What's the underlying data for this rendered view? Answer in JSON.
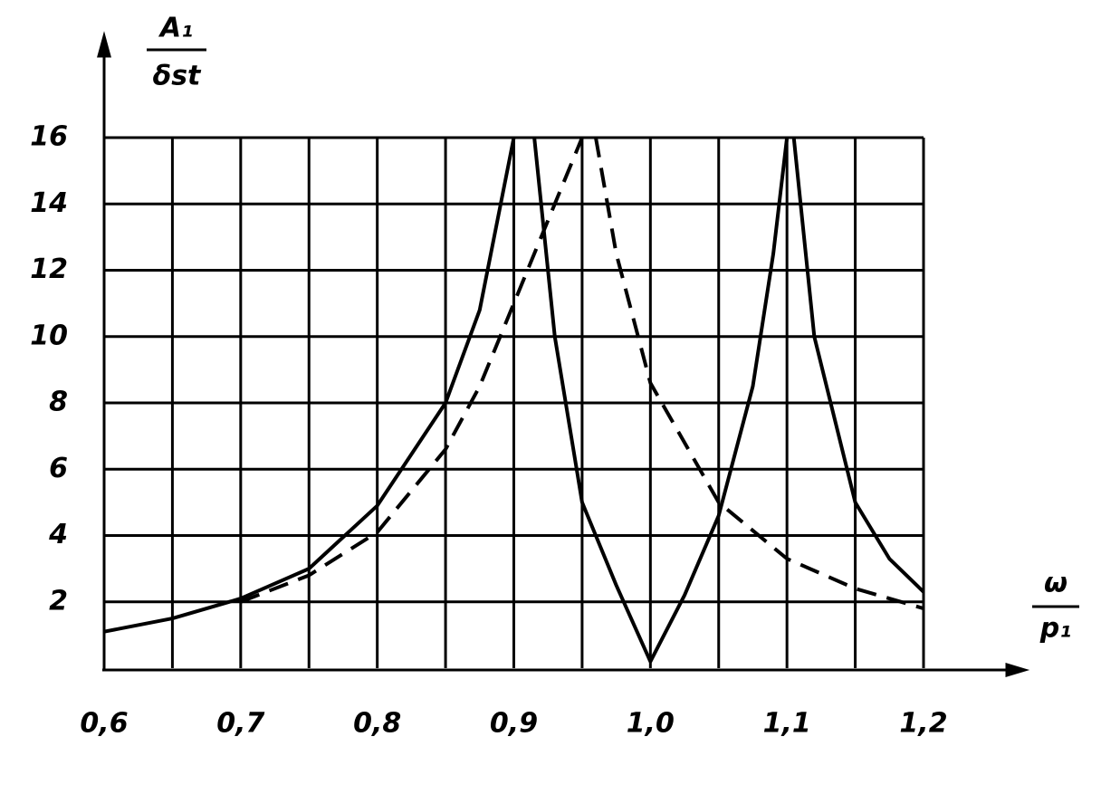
{
  "chart_data": {
    "type": "line",
    "y_label": {
      "numerator": "A₁",
      "denominator": "δst"
    },
    "x_label": {
      "numerator": "ω",
      "denominator": "p₁"
    },
    "xlim": [
      0.6,
      1.2
    ],
    "ylim": [
      0,
      16
    ],
    "xticks": [
      {
        "value": 0.6,
        "label": "0,6"
      },
      {
        "value": 0.7,
        "label": "0,7"
      },
      {
        "value": 0.8,
        "label": "0,8"
      },
      {
        "value": 0.9,
        "label": "0,9"
      },
      {
        "value": 1.0,
        "label": "1,0"
      },
      {
        "value": 1.1,
        "label": "1,1"
      },
      {
        "value": 1.2,
        "label": "1,2"
      }
    ],
    "yticks": [
      2,
      4,
      6,
      8,
      10,
      12,
      14,
      16
    ],
    "xgrid": [
      0.6,
      0.65,
      0.7,
      0.75,
      0.8,
      0.85,
      0.9,
      0.95,
      1.0,
      1.05,
      1.1,
      1.15,
      1.2
    ],
    "grid": true,
    "series": [
      {
        "color": "#000000",
        "dashed": false,
        "x": [
          0.6,
          0.65,
          0.7,
          0.75,
          0.8,
          0.85,
          0.875,
          0.9,
          null,
          0.915,
          0.93,
          0.95,
          0.975,
          1.0,
          1.025,
          1.05,
          1.075,
          1.09,
          1.1,
          null,
          1.105,
          1.12,
          1.15,
          1.175,
          1.2
        ],
        "values": [
          1.1,
          1.5,
          2.1,
          3.0,
          4.9,
          8.0,
          10.8,
          16,
          null,
          16,
          10,
          5,
          2.5,
          0.2,
          2.2,
          4.6,
          8.5,
          12.5,
          16,
          null,
          16,
          10,
          5,
          3.3,
          2.3
        ]
      },
      {
        "color": "#000000",
        "dashed": true,
        "x": [
          0.7,
          0.75,
          0.8,
          0.85,
          0.875,
          0.9,
          0.925,
          0.95,
          null,
          0.96,
          0.975,
          1.0,
          1.05,
          1.1,
          1.15,
          1.2
        ],
        "values": [
          2.0,
          2.8,
          4.1,
          6.6,
          8.5,
          11,
          13.5,
          16,
          null,
          16,
          12.5,
          8.6,
          5,
          3.3,
          2.4,
          1.8
        ]
      }
    ]
  }
}
